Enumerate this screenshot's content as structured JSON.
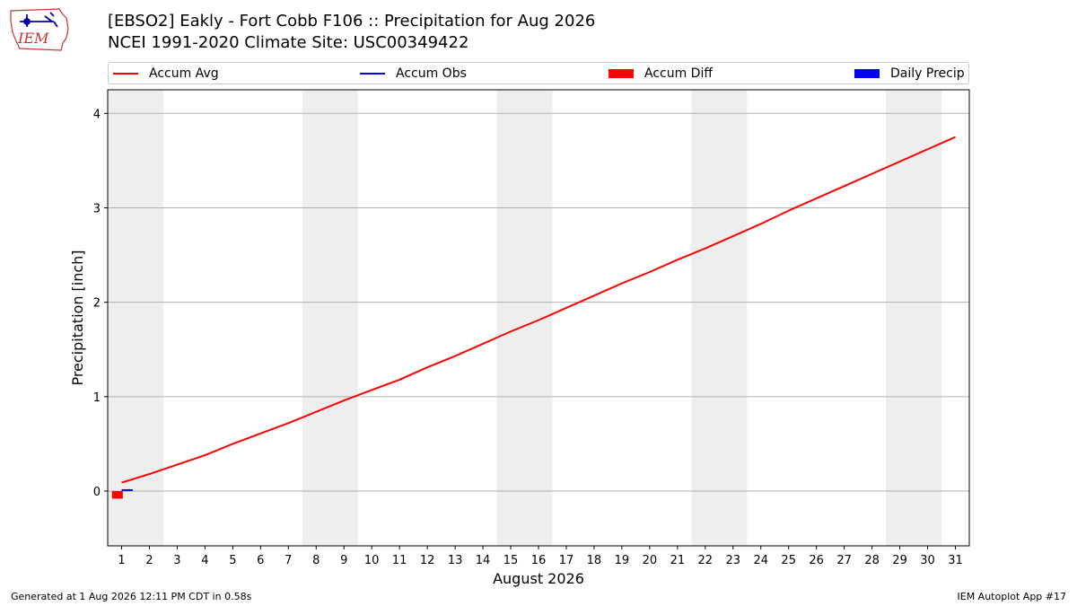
{
  "logo": {
    "text": "IEM",
    "icon": "iem-weather-station-logo"
  },
  "header": {
    "title_line1": "[EBSO2] Eakly - Fort Cobb F106 :: Precipitation for Aug 2026",
    "title_line2": "NCEI 1991-2020 Climate Site: USC00349422"
  },
  "legend": [
    {
      "label": "Accum Avg",
      "color": "#ff0000",
      "style": "line"
    },
    {
      "label": "Accum Obs",
      "color": "#0000ff",
      "style": "line"
    },
    {
      "label": "Accum Diff",
      "color": "#ff0000",
      "style": "bar"
    },
    {
      "label": "Daily Precip",
      "color": "#0000ff",
      "style": "bar"
    }
  ],
  "chart_data": {
    "type": "line",
    "xlabel": "August 2026",
    "ylabel": "Precipitation [inch]",
    "x": [
      1,
      2,
      3,
      4,
      5,
      6,
      7,
      8,
      9,
      10,
      11,
      12,
      13,
      14,
      15,
      16,
      17,
      18,
      19,
      20,
      21,
      22,
      23,
      24,
      25,
      26,
      27,
      28,
      29,
      30,
      31
    ],
    "xlim": [
      0.5,
      31.5
    ],
    "ylim": [
      -0.58,
      4.25
    ],
    "yticks": [
      0,
      1,
      2,
      3,
      4
    ],
    "grid": "horizontal",
    "weekend_shading": [
      [
        0.5,
        2.5
      ],
      [
        7.5,
        9.5
      ],
      [
        14.5,
        16.5
      ],
      [
        21.5,
        23.5
      ],
      [
        28.5,
        30.5
      ]
    ],
    "shading_color": "#eeeeee",
    "series": [
      {
        "name": "Accum Avg",
        "type": "line",
        "color": "#ff0000",
        "x": [
          1,
          2,
          3,
          4,
          5,
          6,
          7,
          8,
          9,
          10,
          11,
          12,
          13,
          14,
          15,
          16,
          17,
          18,
          19,
          20,
          21,
          22,
          23,
          24,
          25,
          26,
          27,
          28,
          29,
          30,
          31
        ],
        "values": [
          0.09,
          0.18,
          0.28,
          0.38,
          0.5,
          0.61,
          0.72,
          0.84,
          0.96,
          1.07,
          1.18,
          1.31,
          1.43,
          1.56,
          1.69,
          1.81,
          1.94,
          2.07,
          2.2,
          2.32,
          2.45,
          2.57,
          2.7,
          2.83,
          2.97,
          3.1,
          3.23,
          3.36,
          3.49,
          3.62,
          3.75
        ]
      },
      {
        "name": "Accum Obs",
        "type": "line",
        "color": "#0000ff",
        "x": [
          1,
          1.4
        ],
        "values": [
          0.01,
          0.01
        ]
      },
      {
        "name": "Accum Diff",
        "type": "bar",
        "color": "#ff0000",
        "x": [
          0.85
        ],
        "values": [
          -0.08
        ]
      },
      {
        "name": "Daily Precip",
        "type": "bar",
        "color": "#0000ff",
        "x": [
          1.15
        ],
        "values": [
          0.0
        ]
      }
    ]
  },
  "footer": {
    "left": "Generated at 1 Aug 2026 12:11 PM CDT in 0.58s",
    "right": "IEM Autoplot App #17"
  }
}
